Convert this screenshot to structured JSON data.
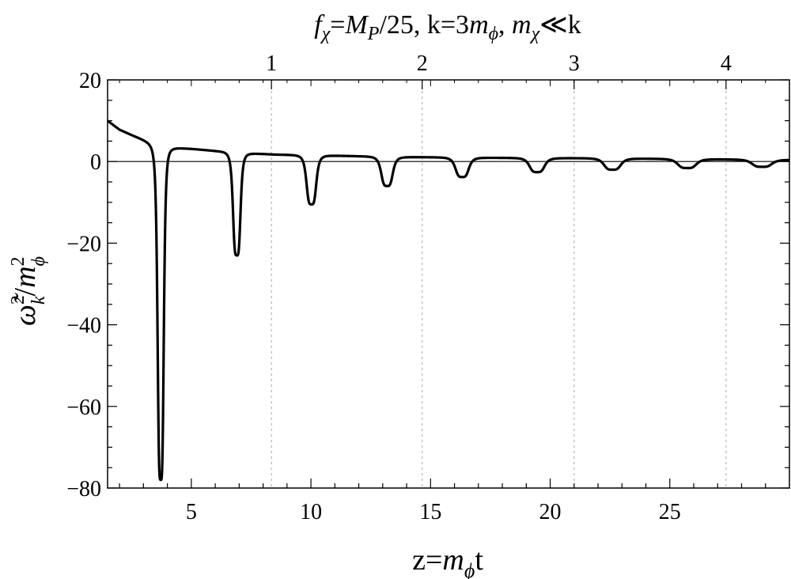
{
  "chart_data": {
    "type": "line",
    "title_parts": {
      "f": "f",
      "f_sub": "χ",
      "eq1": "=",
      "M": "M",
      "M_sub": "P",
      "rest1": "/25, k=3",
      "m": "m",
      "m_sub": "ϕ",
      "comma": ", ",
      "m2": "m",
      "m2_sub": "χ",
      "rest2": "≪k"
    },
    "xlabel_parts": {
      "pre": "z=",
      "m": "m",
      "m_sub": "ϕ",
      "post": "t"
    },
    "ylabel_parts": {
      "omega": "ω̃",
      "sup1": "2",
      "sub1": "k",
      "slash": "/",
      "m": "m",
      "sup2": "2",
      "sub2": "ϕ"
    },
    "xlim": [
      1.5,
      30.0
    ],
    "ylim": [
      -80,
      20
    ],
    "x_ticks": [
      5,
      10,
      15,
      20,
      25
    ],
    "y_ticks": [
      20,
      0,
      -20,
      -40,
      -60,
      -80
    ],
    "top_ticks": [
      {
        "label": "1",
        "x": 8.35
      },
      {
        "label": "2",
        "x": 14.65
      },
      {
        "label": "3",
        "x": 21.0
      },
      {
        "label": "4",
        "x": 27.35
      }
    ],
    "grid": "vertical dashed at top-axis ticks",
    "series": [
      {
        "color": "#000000",
        "baseline": [
          [
            1.5,
            10.0
          ],
          [
            2.0,
            7.8
          ],
          [
            2.5,
            6.5
          ],
          [
            3.0,
            5.3
          ],
          [
            3.4,
            4.3
          ],
          [
            4.2,
            3.4
          ],
          [
            5.0,
            3.1
          ],
          [
            6.0,
            2.6
          ],
          [
            7.5,
            2.0
          ],
          [
            8.5,
            1.7
          ],
          [
            10.5,
            1.5
          ],
          [
            12.0,
            1.3
          ],
          [
            14.0,
            1.1
          ],
          [
            16.0,
            1.0
          ],
          [
            18.0,
            0.9
          ],
          [
            20.0,
            0.85
          ],
          [
            22.0,
            0.8
          ],
          [
            24.0,
            0.7
          ],
          [
            26.0,
            0.6
          ],
          [
            28.0,
            0.5
          ],
          [
            30.0,
            0.4
          ]
        ],
        "dips": [
          {
            "x": 3.72,
            "depth": -78,
            "width": 0.14
          },
          {
            "x": 6.9,
            "depth": -23,
            "width": 0.17
          },
          {
            "x": 10.02,
            "depth": -10.5,
            "width": 0.22
          },
          {
            "x": 13.18,
            "depth": -6,
            "width": 0.26
          },
          {
            "x": 16.32,
            "depth": -3.8,
            "width": 0.3
          },
          {
            "x": 19.45,
            "depth": -2.6,
            "width": 0.34
          },
          {
            "x": 22.6,
            "depth": -2.0,
            "width": 0.38
          },
          {
            "x": 25.72,
            "depth": -1.6,
            "width": 0.42
          },
          {
            "x": 28.85,
            "depth": -1.3,
            "width": 0.45
          }
        ]
      }
    ]
  }
}
